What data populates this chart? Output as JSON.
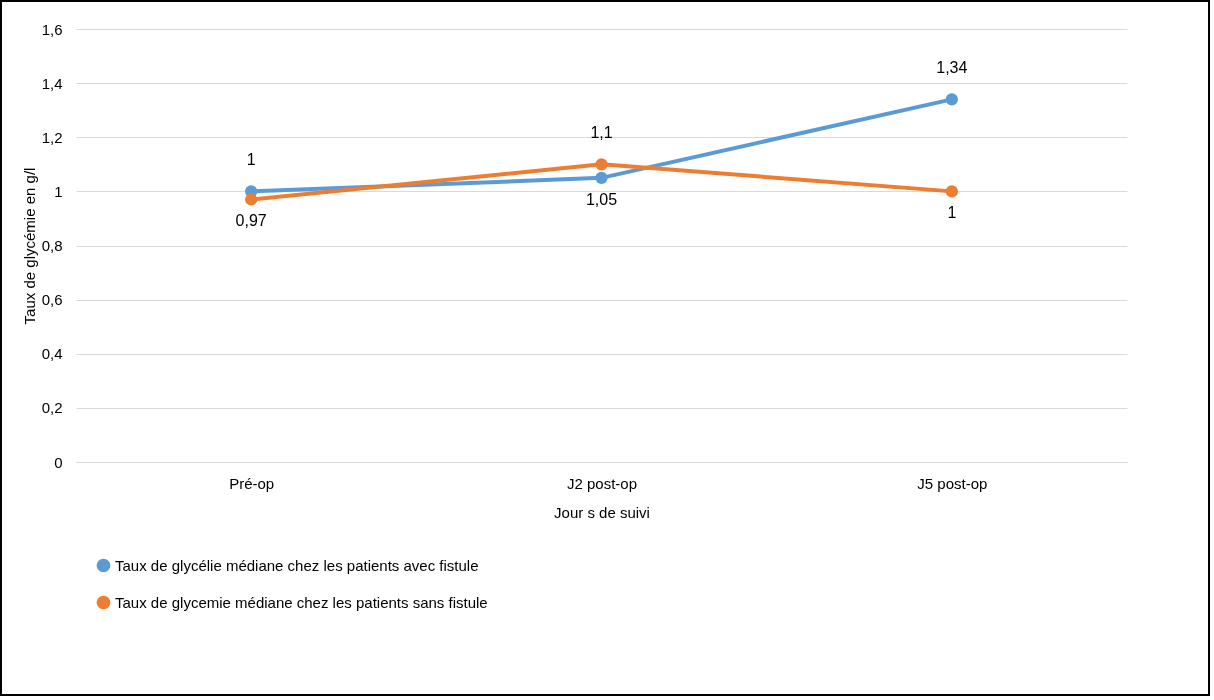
{
  "chart_data": {
    "type": "line",
    "xlabel": "Jour s de suivi",
    "ylabel": "Taux de glycémie en g/l",
    "categories": [
      "Pré-op",
      "J2 post-op",
      "J5 post-op"
    ],
    "series": [
      {
        "name": "Taux de glycélie médiane chez les patients avec fistule",
        "color": "#5b9bd5",
        "values": [
          1,
          1.05,
          1.34
        ],
        "value_labels": [
          "1",
          "1,05",
          "1,34"
        ]
      },
      {
        "name": "Taux de glycemie médiane chez les patients sans fistule",
        "color": "#ed7d31",
        "values": [
          0.97,
          1.1,
          1
        ],
        "value_labels": [
          "0,97",
          "1,1",
          "1"
        ]
      }
    ],
    "ylim": [
      0,
      1.6
    ],
    "yticks": [
      0,
      {
        "value": 0.2,
        "label": "0,2"
      },
      {
        "value": 0.4,
        "label": "0,4"
      },
      {
        "value": 0.6,
        "label": "0,6"
      },
      {
        "value": 0.8,
        "label": "0,8"
      },
      1,
      {
        "value": 1.2,
        "label": "1,2"
      },
      {
        "value": 1.4,
        "label": "1,4"
      },
      {
        "value": 1.6,
        "label": "1,6"
      }
    ],
    "grid": "y",
    "legend": "bottom",
    "marker": "circle",
    "line_style": "solid"
  }
}
